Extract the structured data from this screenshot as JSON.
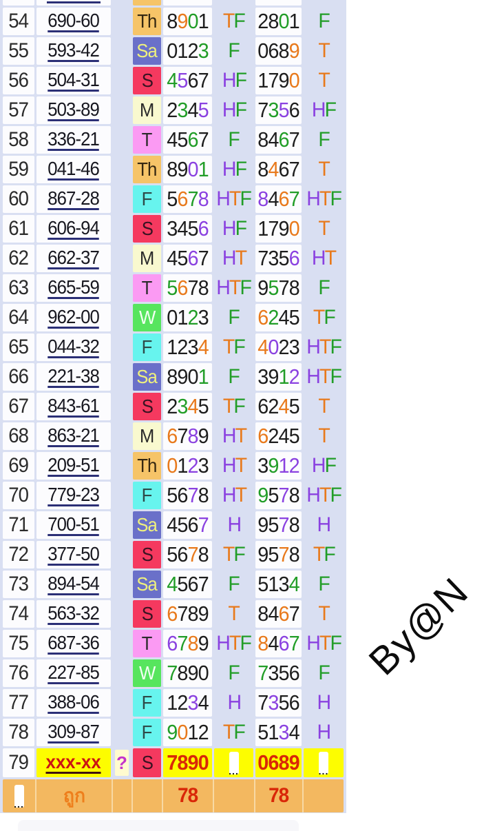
{
  "watermark": {
    "text": "By@N"
  },
  "colors": {
    "table_bg": "#d9dff2",
    "cell_white": "#fcfcfe",
    "accent_yellow": "#fdfd00",
    "pale_yellow": "#fffbcf",
    "footer_bg": "#f3b860",
    "red": "#d92708",
    "code_red": "#cc1414",
    "query_magenta": "#c433cc",
    "footer_label_orange": "#ee7f1c",
    "digit": {
      "k": "#1d1d1d",
      "g": "#219d27",
      "o": "#e8791b",
      "p": "#8a41e0"
    },
    "day": {
      "Th": {
        "bg": "#f6c468",
        "fg": "#342711"
      },
      "Sa": {
        "bg": "#6a70c9",
        "fg": "#eef07e"
      },
      "S": {
        "bg": "#f5395f",
        "fg": "#391322"
      },
      "M": {
        "bg": "#f9f9cf",
        "fg": "#2b2b2b"
      },
      "T": {
        "bg": "#fb9af3",
        "fg": "#2b2b2b"
      },
      "F": {
        "bg": "#67f4ee",
        "fg": "#2e4a48"
      },
      "W": {
        "bg": "#57e55e",
        "fg": "#f2fff2"
      }
    }
  },
  "rows": [
    {
      "num": "54",
      "code": "690-60",
      "day": "Th",
      "n1": "8901",
      "c1": "kogk",
      "l1": "TF",
      "cl1": "og",
      "n2": "2801",
      "c2": "kkgk",
      "l2": "F",
      "cl2": "g"
    },
    {
      "num": "55",
      "code": "593-42",
      "day": "Sa",
      "n1": "0123",
      "c1": "kkkg",
      "l1": "F",
      "cl1": "g",
      "n2": "0689",
      "c2": "kkko",
      "l2": "T",
      "cl2": "o"
    },
    {
      "num": "56",
      "code": "504-31",
      "day": "S",
      "n1": "4567",
      "c1": "gpkk",
      "l1": "HF",
      "cl1": "pg",
      "n2": "1790",
      "c2": "kkko",
      "l2": "T",
      "cl2": "o"
    },
    {
      "num": "57",
      "code": "503-89",
      "day": "M",
      "n1": "2345",
      "c1": "kgkp",
      "l1": "HF",
      "cl1": "pg",
      "n2": "7356",
      "c2": "kgpk",
      "l2": "HF",
      "cl2": "pg"
    },
    {
      "num": "58",
      "code": "336-21",
      "day": "T",
      "n1": "4567",
      "c1": "kkgk",
      "l1": "F",
      "cl1": "g",
      "n2": "8467",
      "c2": "kkgk",
      "l2": "F",
      "cl2": "g"
    },
    {
      "num": "59",
      "code": "041-46",
      "day": "Th",
      "n1": "8901",
      "c1": "kkpg",
      "l1": "HF",
      "cl1": "pg",
      "n2": "8467",
      "c2": "kokk",
      "l2": "T",
      "cl2": "o"
    },
    {
      "num": "60",
      "code": "867-28",
      "day": "F",
      "n1": "5678",
      "c1": "kogp",
      "l1": "HTF",
      "cl1": "pog",
      "n2": "8467",
      "c2": "pkog",
      "l2": "HTF",
      "cl2": "pog"
    },
    {
      "num": "61",
      "code": "606-94",
      "day": "S",
      "n1": "3456",
      "c1": "kkkp",
      "l1": "HF",
      "cl1": "pg",
      "n2": "1790",
      "c2": "kkko",
      "l2": "T",
      "cl2": "o"
    },
    {
      "num": "62",
      "code": "662-37",
      "day": "M",
      "n1": "4567",
      "c1": "kkpk",
      "l1": "HT",
      "cl1": "po",
      "n2": "7356",
      "c2": "kkkp",
      "l2": "HT",
      "cl2": "po"
    },
    {
      "num": "63",
      "code": "665-59",
      "day": "T",
      "n1": "5678",
      "c1": "gokk",
      "l1": "HTF",
      "cl1": "pog",
      "n2": "9578",
      "c2": "kgkk",
      "l2": "F",
      "cl2": "g"
    },
    {
      "num": "64",
      "code": "962-00",
      "day": "W",
      "n1": "0123",
      "c1": "kkgk",
      "l1": "F",
      "cl1": "g",
      "n2": "6245",
      "c2": "ogkk",
      "l2": "TF",
      "cl2": "og"
    },
    {
      "num": "65",
      "code": "044-32",
      "day": "F",
      "n1": "1234",
      "c1": "kkko",
      "l1": "TF",
      "cl1": "og",
      "n2": "4023",
      "c2": "opkk",
      "l2": "HTF",
      "cl2": "pog"
    },
    {
      "num": "66",
      "code": "221-38",
      "day": "Sa",
      "n1": "8901",
      "c1": "kkkg",
      "l1": "F",
      "cl1": "g",
      "n2": "3912",
      "c2": "kkgp",
      "l2": "HTF",
      "cl2": "pog"
    },
    {
      "num": "67",
      "code": "843-61",
      "day": "S",
      "n1": "2345",
      "c1": "kgok",
      "l1": "TF",
      "cl1": "og",
      "n2": "6245",
      "c2": "kkok",
      "l2": "T",
      "cl2": "o"
    },
    {
      "num": "68",
      "code": "863-21",
      "day": "M",
      "n1": "6789",
      "c1": "okpk",
      "l1": "HT",
      "cl1": "po",
      "n2": "6245",
      "c2": "okkk",
      "l2": "T",
      "cl2": "o"
    },
    {
      "num": "69",
      "code": "209-51",
      "day": "Th",
      "n1": "0123",
      "c1": "okpk",
      "l1": "HT",
      "cl1": "po",
      "n2": "3912",
      "c2": "kgpp",
      "l2": "HF",
      "cl2": "pg"
    },
    {
      "num": "70",
      "code": "779-23",
      "day": "F",
      "n1": "5678",
      "c1": "kkpk",
      "l1": "HT",
      "cl1": "po",
      "n2": "9578",
      "c2": "gkpk",
      "l2": "HTF",
      "cl2": "pog"
    },
    {
      "num": "71",
      "code": "700-51",
      "day": "Sa",
      "n1": "4567",
      "c1": "kkkp",
      "l1": "H",
      "cl1": "p",
      "n2": "9578",
      "c2": "kkpk",
      "l2": "H",
      "cl2": "p"
    },
    {
      "num": "72",
      "code": "377-50",
      "day": "S",
      "n1": "5678",
      "c1": "kkok",
      "l1": "TF",
      "cl1": "og",
      "n2": "9578",
      "c2": "kkok",
      "l2": "TF",
      "cl2": "og"
    },
    {
      "num": "73",
      "code": "894-54",
      "day": "Sa",
      "n1": "4567",
      "c1": "gkkk",
      "l1": "F",
      "cl1": "g",
      "n2": "5134",
      "c2": "kkkg",
      "l2": "F",
      "cl2": "g"
    },
    {
      "num": "74",
      "code": "563-32",
      "day": "S",
      "n1": "6789",
      "c1": "okkk",
      "l1": "T",
      "cl1": "o",
      "n2": "8467",
      "c2": "kkok",
      "l2": "T",
      "cl2": "o"
    },
    {
      "num": "75",
      "code": "687-36",
      "day": "T",
      "n1": "6789",
      "c1": "pgok",
      "l1": "HTF",
      "cl1": "pog",
      "n2": "8467",
      "c2": "okpg",
      "l2": "HTF",
      "cl2": "pog"
    },
    {
      "num": "76",
      "code": "227-85",
      "day": "W",
      "n1": "7890",
      "c1": "gkkk",
      "l1": "F",
      "cl1": "g",
      "n2": "7356",
      "c2": "gkkk",
      "l2": "F",
      "cl2": "g"
    },
    {
      "num": "77",
      "code": "388-06",
      "day": "F",
      "n1": "1234",
      "c1": "kkpk",
      "l1": "H",
      "cl1": "p",
      "n2": "7356",
      "c2": "kpkk",
      "l2": "H",
      "cl2": "p"
    },
    {
      "num": "78",
      "code": "309-87",
      "day": "F",
      "n1": "9012",
      "c1": "gokk",
      "l1": "TF",
      "cl1": "og",
      "n2": "5134",
      "c2": "kkpk",
      "l2": "H",
      "cl2": "p"
    }
  ],
  "special_row": {
    "num": "79",
    "code": "xxx-xx",
    "query": "?",
    "day": "S",
    "n1": "7890",
    "n2": "0689",
    "ellipsis": "..."
  },
  "footer": {
    "ellipsis": "...",
    "label": "ถูก",
    "count1": "78",
    "count2": "78"
  }
}
